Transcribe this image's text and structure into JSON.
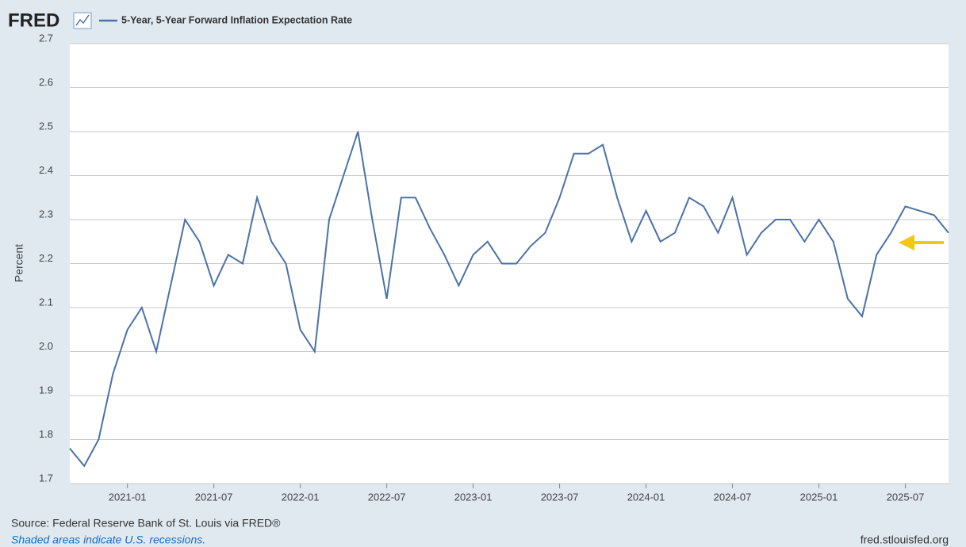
{
  "header": {
    "logo": "FRED"
  },
  "chart_data": {
    "type": "line",
    "ylabel": "Percent",
    "x": [
      "2020-09",
      "2020-10",
      "2020-11",
      "2020-12",
      "2021-01",
      "2021-02",
      "2021-03",
      "2021-04",
      "2021-05",
      "2021-06",
      "2021-07",
      "2021-08",
      "2021-09",
      "2021-10",
      "2021-11",
      "2021-12",
      "2022-01",
      "2022-02",
      "2022-03",
      "2022-04",
      "2022-05",
      "2022-06",
      "2022-07",
      "2022-08",
      "2022-09",
      "2022-10",
      "2022-11",
      "2022-12",
      "2023-01",
      "2023-02",
      "2023-03",
      "2023-04",
      "2023-05",
      "2023-06",
      "2023-07",
      "2023-08",
      "2023-09",
      "2023-10",
      "2023-11",
      "2023-12",
      "2024-01",
      "2024-02",
      "2024-03",
      "2024-04",
      "2024-05",
      "2024-06",
      "2024-07",
      "2024-08",
      "2024-09",
      "2024-10",
      "2024-11",
      "2024-12",
      "2025-01",
      "2025-02",
      "2025-03",
      "2025-04",
      "2025-05",
      "2025-06",
      "2025-07",
      "2025-08",
      "2025-09",
      "2025-10"
    ],
    "series": [
      {
        "name": "5-Year, 5-Year Forward Inflation Expectation Rate",
        "color": "#4a72a8",
        "values": [
          1.78,
          1.74,
          1.8,
          1.95,
          2.05,
          2.1,
          2.0,
          2.15,
          2.3,
          2.25,
          2.15,
          2.22,
          2.2,
          2.35,
          2.25,
          2.2,
          2.05,
          2.0,
          2.3,
          2.4,
          2.5,
          2.3,
          2.12,
          2.35,
          2.35,
          2.28,
          2.22,
          2.15,
          2.22,
          2.25,
          2.2,
          2.2,
          2.24,
          2.27,
          2.35,
          2.45,
          2.45,
          2.47,
          2.35,
          2.25,
          2.32,
          2.25,
          2.27,
          2.35,
          2.33,
          2.27,
          2.35,
          2.22,
          2.27,
          2.3,
          2.3,
          2.25,
          2.3,
          2.25,
          2.12,
          2.08,
          2.22,
          2.27,
          2.33,
          2.32,
          2.31,
          2.27
        ]
      }
    ],
    "xlim": [
      "2020-09",
      "2025-10"
    ],
    "xticks": [
      "2021-01",
      "2021-07",
      "2022-01",
      "2022-07",
      "2023-01",
      "2023-07",
      "2024-01",
      "2024-07",
      "2025-01",
      "2025-07"
    ],
    "ylim": [
      1.7,
      2.7
    ],
    "yticks": [
      1.7,
      1.8,
      1.9,
      {
        "value": 2,
        "label": "2.0"
      },
      2.1,
      2.2,
      2.3,
      2.4,
      2.5,
      2.6,
      2.7
    ],
    "grid": true
  },
  "footer": {
    "source": "Source: Federal Reserve Bank of St. Louis via FRED®",
    "note": "Shaded areas indicate U.S. recessions.",
    "site": "fred.stlouisfed.org"
  }
}
